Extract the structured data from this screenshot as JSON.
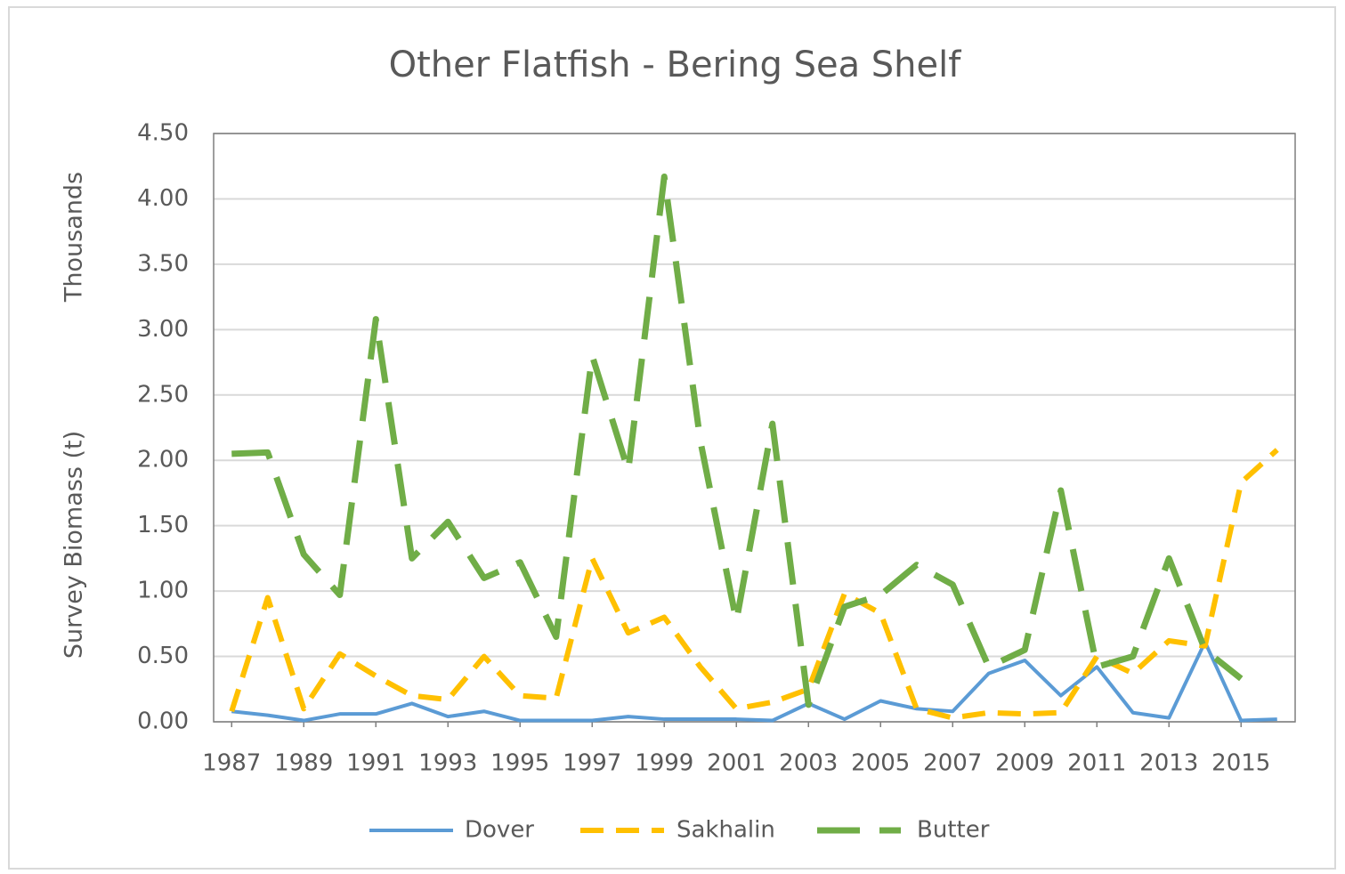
{
  "chart_data": {
    "type": "line",
    "title": "Other Flatfish - Bering Sea Shelf",
    "y_label": "Survey Biomass (t)",
    "y_unit_label": "Thousands",
    "x": [
      1987,
      1988,
      1989,
      1990,
      1991,
      1992,
      1993,
      1994,
      1995,
      1996,
      1997,
      1998,
      1999,
      2000,
      2001,
      2002,
      2003,
      2004,
      2005,
      2006,
      2007,
      2008,
      2009,
      2010,
      2011,
      2012,
      2013,
      2014,
      2015,
      2016
    ],
    "xlim": [
      1986.5,
      2016.5
    ],
    "xticks": [
      1987,
      1989,
      1991,
      1993,
      1995,
      1997,
      1999,
      2001,
      2003,
      2005,
      2007,
      2009,
      2011,
      2013,
      2015
    ],
    "ylim": [
      0,
      4.5
    ],
    "yticks": [
      {
        "value": 0,
        "label": "0.00"
      },
      {
        "value": 0.5,
        "label": "0.50"
      },
      {
        "value": 1,
        "label": "1.00"
      },
      {
        "value": 1.5,
        "label": "1.50"
      },
      {
        "value": 2,
        "label": "2.00"
      },
      {
        "value": 2.5,
        "label": "2.50"
      },
      {
        "value": 3,
        "label": "3.00"
      },
      {
        "value": 3.5,
        "label": "3.50"
      },
      {
        "value": 4,
        "label": "4.00"
      },
      {
        "value": 4.5,
        "label": "4.50"
      }
    ],
    "grid": true,
    "legend": "bottom",
    "series": [
      {
        "name": "Dover",
        "color": "#5b9bd5",
        "dash": "solid",
        "values": [
          0.08,
          0.05,
          0.01,
          0.06,
          0.06,
          0.14,
          0.04,
          0.08,
          0.01,
          0.01,
          0.01,
          0.04,
          0.02,
          0.02,
          0.02,
          0.01,
          0.14,
          0.02,
          0.16,
          0.1,
          0.08,
          0.37,
          0.47,
          0.2,
          0.42,
          0.07,
          0.03,
          0.61,
          0.01,
          0.02
        ]
      },
      {
        "name": "Sakhalin",
        "color": "#ffc000",
        "dash": "dashed",
        "values": [
          0.08,
          0.95,
          0.1,
          0.52,
          0.35,
          0.2,
          0.17,
          0.5,
          0.2,
          0.18,
          1.25,
          0.68,
          0.8,
          0.42,
          0.1,
          0.15,
          0.25,
          0.98,
          0.83,
          0.1,
          0.03,
          0.07,
          0.06,
          0.07,
          0.5,
          0.37,
          0.62,
          0.58,
          1.83,
          2.08
        ]
      },
      {
        "name": "Butter",
        "color": "#70ad47",
        "dash": "long-dashed",
        "values": [
          2.05,
          2.06,
          1.28,
          0.97,
          3.08,
          1.25,
          1.53,
          1.1,
          1.22,
          0.65,
          2.8,
          1.92,
          4.17,
          2.15,
          0.77,
          2.28,
          0.13,
          0.88,
          0.97,
          1.2,
          1.05,
          0.42,
          0.55,
          1.77,
          0.42,
          0.5,
          1.25,
          0.55,
          0.33,
          null
        ]
      }
    ]
  }
}
